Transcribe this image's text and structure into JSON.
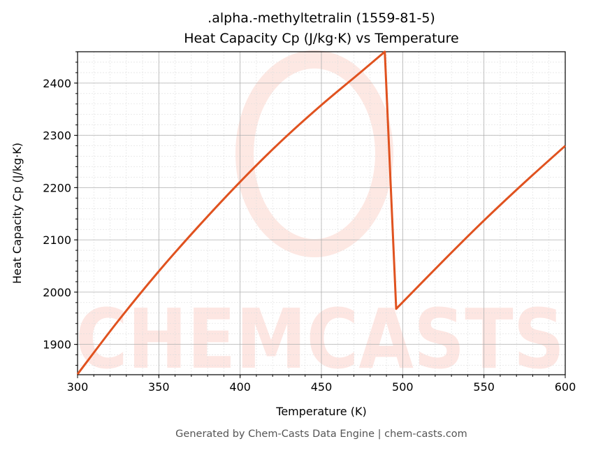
{
  "chart_data": {
    "type": "line",
    "title_line1": ".alpha.-methyltetralin (1559-81-5)",
    "title_line2": "Heat Capacity Cp (J/kg·K) vs Temperature",
    "xlabel": "Temperature (K)",
    "ylabel": "Heat Capacity Cp (J/kg·K)",
    "xlim": [
      300,
      600
    ],
    "ylim": [
      1842,
      2460
    ],
    "xticks": [
      300,
      350,
      400,
      450,
      500,
      550,
      600
    ],
    "yticks": [
      1900,
      2000,
      2100,
      2200,
      2300,
      2400
    ],
    "grid": true,
    "line_color": "#e0521f",
    "series": [
      {
        "x": [
          300,
          325,
          350,
          375,
          400,
          425,
          450,
          475,
          489,
          496,
          525,
          550,
          575,
          600
        ],
        "y": [
          1843,
          1945,
          2040,
          2128,
          2211,
          2288,
          2358,
          2423,
          2460,
          1968,
          2060,
          2137,
          2210,
          2280
        ]
      }
    ],
    "watermark": "CHEMCASTS"
  },
  "footer": "Generated by Chem-Casts Data Engine | chem-casts.com"
}
